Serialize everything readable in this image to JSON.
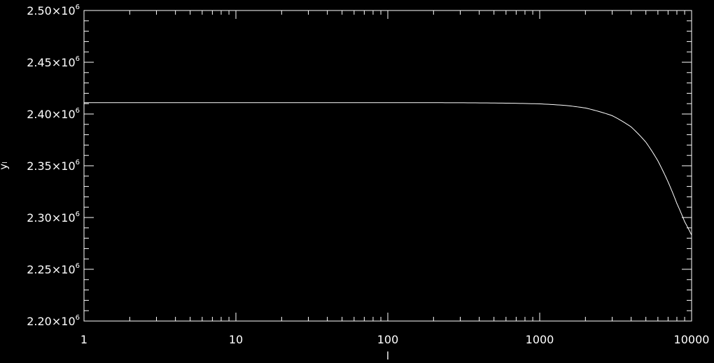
{
  "chart_data": {
    "type": "line",
    "xscale": "log",
    "xlim": [
      1,
      10000
    ],
    "ylim": [
      2200000,
      2500000
    ],
    "xlabel": "l",
    "ylabel": "yₗ",
    "xticks": [
      {
        "value": 1,
        "label": "1"
      },
      {
        "value": 10,
        "label": "10"
      },
      {
        "value": 100,
        "label": "100"
      },
      {
        "value": 1000,
        "label": "1000"
      },
      {
        "value": 10000,
        "label": "10000"
      }
    ],
    "yticks": [
      {
        "value": 2200000,
        "mantissa": "2.20",
        "exponent": "6"
      },
      {
        "value": 2250000,
        "mantissa": "2.25",
        "exponent": "6"
      },
      {
        "value": 2300000,
        "mantissa": "2.30",
        "exponent": "6"
      },
      {
        "value": 2350000,
        "mantissa": "2.35",
        "exponent": "6"
      },
      {
        "value": 2400000,
        "mantissa": "2.40",
        "exponent": "6"
      },
      {
        "value": 2450000,
        "mantissa": "2.45",
        "exponent": "6"
      },
      {
        "value": 2500000,
        "mantissa": "2.50",
        "exponent": "6"
      }
    ],
    "series": [
      {
        "x": [
          1,
          10,
          100,
          300,
          600,
          1000,
          1500,
          2000,
          3000,
          4000,
          5000,
          6000,
          7000,
          8000,
          9000,
          10000
        ],
        "y": [
          2411000,
          2411000,
          2411000,
          2410900,
          2410500,
          2409800,
          2408200,
          2405800,
          2398400,
          2387500,
          2372800,
          2354700,
          2334400,
          2313600,
          2296000,
          2283000
        ]
      }
    ],
    "colors": {
      "background": "#000000",
      "foreground": "#ffffff"
    }
  }
}
